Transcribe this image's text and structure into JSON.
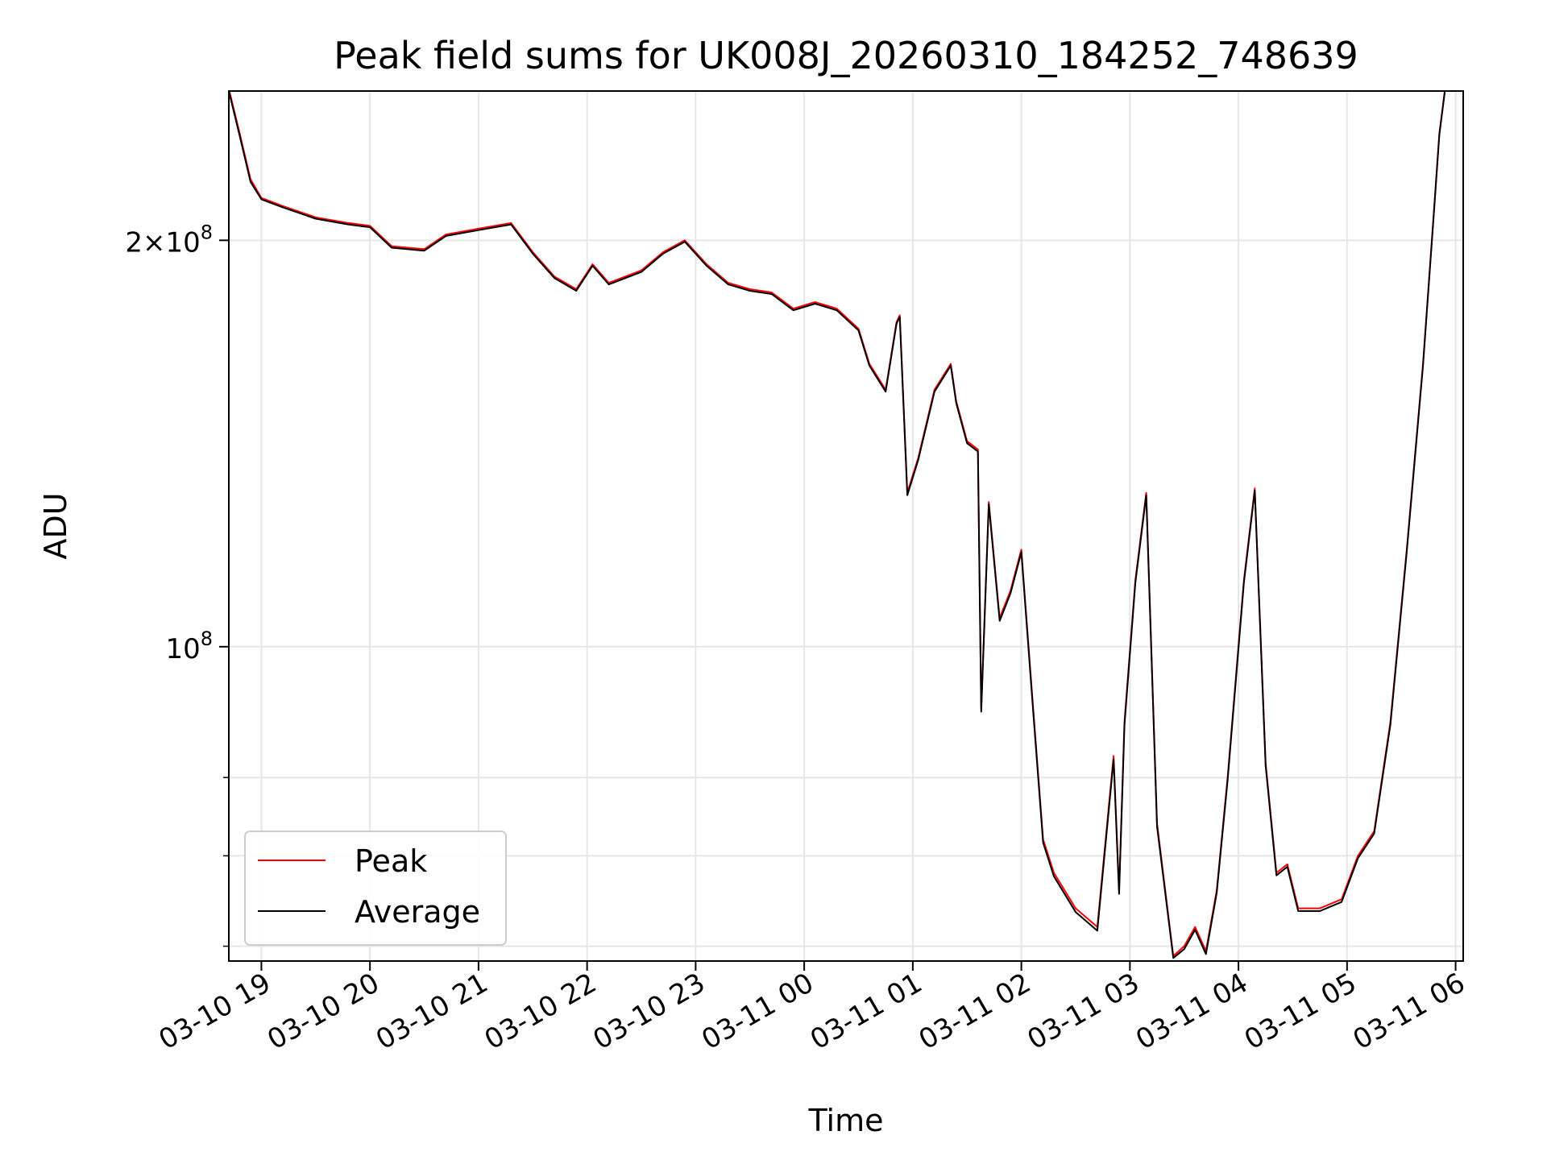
{
  "chart_data": {
    "type": "line",
    "title": "Peak field sums for UK008J_20260310_184252_748639",
    "xlabel": "Time",
    "ylabel": "ADU",
    "yscale": "log",
    "ylim": [
      58500000,
      258000000
    ],
    "xlim_hours": [
      18.7,
      30.07
    ],
    "grid": true,
    "legend_position": "lower-left",
    "x_ticks": [
      {
        "hour": 19,
        "label": "03-10 19"
      },
      {
        "hour": 20,
        "label": "03-10 20"
      },
      {
        "hour": 21,
        "label": "03-10 21"
      },
      {
        "hour": 22,
        "label": "03-10 22"
      },
      {
        "hour": 23,
        "label": "03-10 23"
      },
      {
        "hour": 24,
        "label": "03-11 00"
      },
      {
        "hour": 25,
        "label": "03-11 01"
      },
      {
        "hour": 26,
        "label": "03-11 02"
      },
      {
        "hour": 27,
        "label": "03-11 03"
      },
      {
        "hour": 28,
        "label": "03-11 04"
      },
      {
        "hour": 29,
        "label": "03-11 05"
      },
      {
        "hour": 30,
        "label": "03-11 06"
      }
    ],
    "y_major_ticks": [
      {
        "value": 100000000,
        "base": "10",
        "exp": "8",
        "coef": ""
      },
      {
        "value": 200000000,
        "base": "10",
        "exp": "8",
        "coef": "2×"
      }
    ],
    "y_minor_ticks": [
      60000000,
      70000000,
      80000000
    ],
    "series": [
      {
        "name": "Peak",
        "color": "#ff0000",
        "x": [
          18.7,
          18.8,
          18.9,
          19.0,
          19.2,
          19.5,
          19.8,
          20.0,
          20.2,
          20.5,
          20.7,
          21.0,
          21.3,
          21.5,
          21.7,
          21.9,
          22.05,
          22.2,
          22.5,
          22.7,
          22.9,
          23.1,
          23.3,
          23.5,
          23.7,
          23.9,
          24.1,
          24.3,
          24.5,
          24.6,
          24.75,
          24.85,
          24.88,
          24.95,
          25.05,
          25.2,
          25.35,
          25.4,
          25.5,
          25.6,
          25.63,
          25.7,
          25.8,
          25.9,
          26.0,
          26.1,
          26.2,
          26.3,
          26.5,
          26.7,
          26.85,
          26.9,
          26.95,
          27.05,
          27.15,
          27.25,
          27.4,
          27.5,
          27.6,
          27.7,
          27.8,
          27.9,
          28.05,
          28.15,
          28.25,
          28.35,
          28.45,
          28.55,
          28.65,
          28.75,
          28.85,
          28.95,
          29.1,
          29.25,
          29.4,
          29.55,
          29.7,
          29.8,
          29.85,
          29.9
        ],
        "y": [
          259000000,
          240000000,
          222000000,
          215000000,
          212000000,
          208000000,
          206000000,
          205000000,
          198000000,
          197000000,
          202000000,
          204000000,
          206000000,
          196000000,
          188000000,
          184000000,
          192000000,
          186000000,
          190000000,
          196000000,
          200000000,
          192000000,
          186000000,
          184000000,
          183000000,
          178000000,
          180000000,
          178000000,
          172000000,
          162000000,
          155000000,
          174000000,
          176000000,
          130000000,
          138000000,
          155000000,
          162000000,
          152000000,
          142000000,
          140000000,
          90000000,
          128000000,
          105000000,
          110000000,
          118000000,
          92000000,
          72000000,
          68000000,
          64000000,
          62000000,
          83000000,
          66000000,
          88000000,
          112000000,
          130000000,
          74000000,
          59000000,
          60000000,
          62000000,
          59500000,
          66000000,
          80000000,
          112000000,
          131000000,
          82000000,
          68000000,
          69000000,
          64000000,
          64000000,
          64000000,
          64500000,
          65000000,
          70000000,
          73000000,
          88000000,
          118000000,
          162000000,
          210000000,
          240000000,
          258000000
        ]
      },
      {
        "name": "Average",
        "color": "#000000",
        "x": [
          18.7,
          18.8,
          18.9,
          19.0,
          19.2,
          19.5,
          19.8,
          20.0,
          20.2,
          20.5,
          20.7,
          21.0,
          21.3,
          21.5,
          21.7,
          21.9,
          22.05,
          22.2,
          22.5,
          22.7,
          22.9,
          23.1,
          23.3,
          23.5,
          23.7,
          23.9,
          24.1,
          24.3,
          24.5,
          24.6,
          24.75,
          24.85,
          24.88,
          24.95,
          25.05,
          25.2,
          25.35,
          25.4,
          25.5,
          25.6,
          25.63,
          25.7,
          25.8,
          25.9,
          26.0,
          26.1,
          26.2,
          26.3,
          26.5,
          26.7,
          26.85,
          26.9,
          26.95,
          27.05,
          27.15,
          27.25,
          27.4,
          27.5,
          27.6,
          27.7,
          27.8,
          27.9,
          28.05,
          28.15,
          28.25,
          28.35,
          28.45,
          28.55,
          28.65,
          28.75,
          28.85,
          28.95,
          29.1,
          29.25,
          29.4,
          29.55,
          29.7,
          29.8,
          29.85,
          29.9
        ],
        "y": [
          258000000,
          239000000,
          221000000,
          214500000,
          211500000,
          207500000,
          205500000,
          204500000,
          197500000,
          196500000,
          201500000,
          203500000,
          205500000,
          195500000,
          187500000,
          183500000,
          191500000,
          185500000,
          189500000,
          195500000,
          199500000,
          191500000,
          185500000,
          183500000,
          182500000,
          177500000,
          179500000,
          177500000,
          171500000,
          161500000,
          154500000,
          173500000,
          175500000,
          129500000,
          137500000,
          154500000,
          161500000,
          151500000,
          141500000,
          139500000,
          89500000,
          127500000,
          104500000,
          109500000,
          117500000,
          91500000,
          71600000,
          67600000,
          63600000,
          61600000,
          82500000,
          65600000,
          87500000,
          111500000,
          129500000,
          73600000,
          58800000,
          59700000,
          61700000,
          59200000,
          65700000,
          79600000,
          111500000,
          130500000,
          81600000,
          67700000,
          68700000,
          63700000,
          63700000,
          63700000,
          64200000,
          64700000,
          69700000,
          72700000,
          87600000,
          117500000,
          161500000,
          209500000,
          239500000,
          257500000
        ]
      }
    ]
  }
}
